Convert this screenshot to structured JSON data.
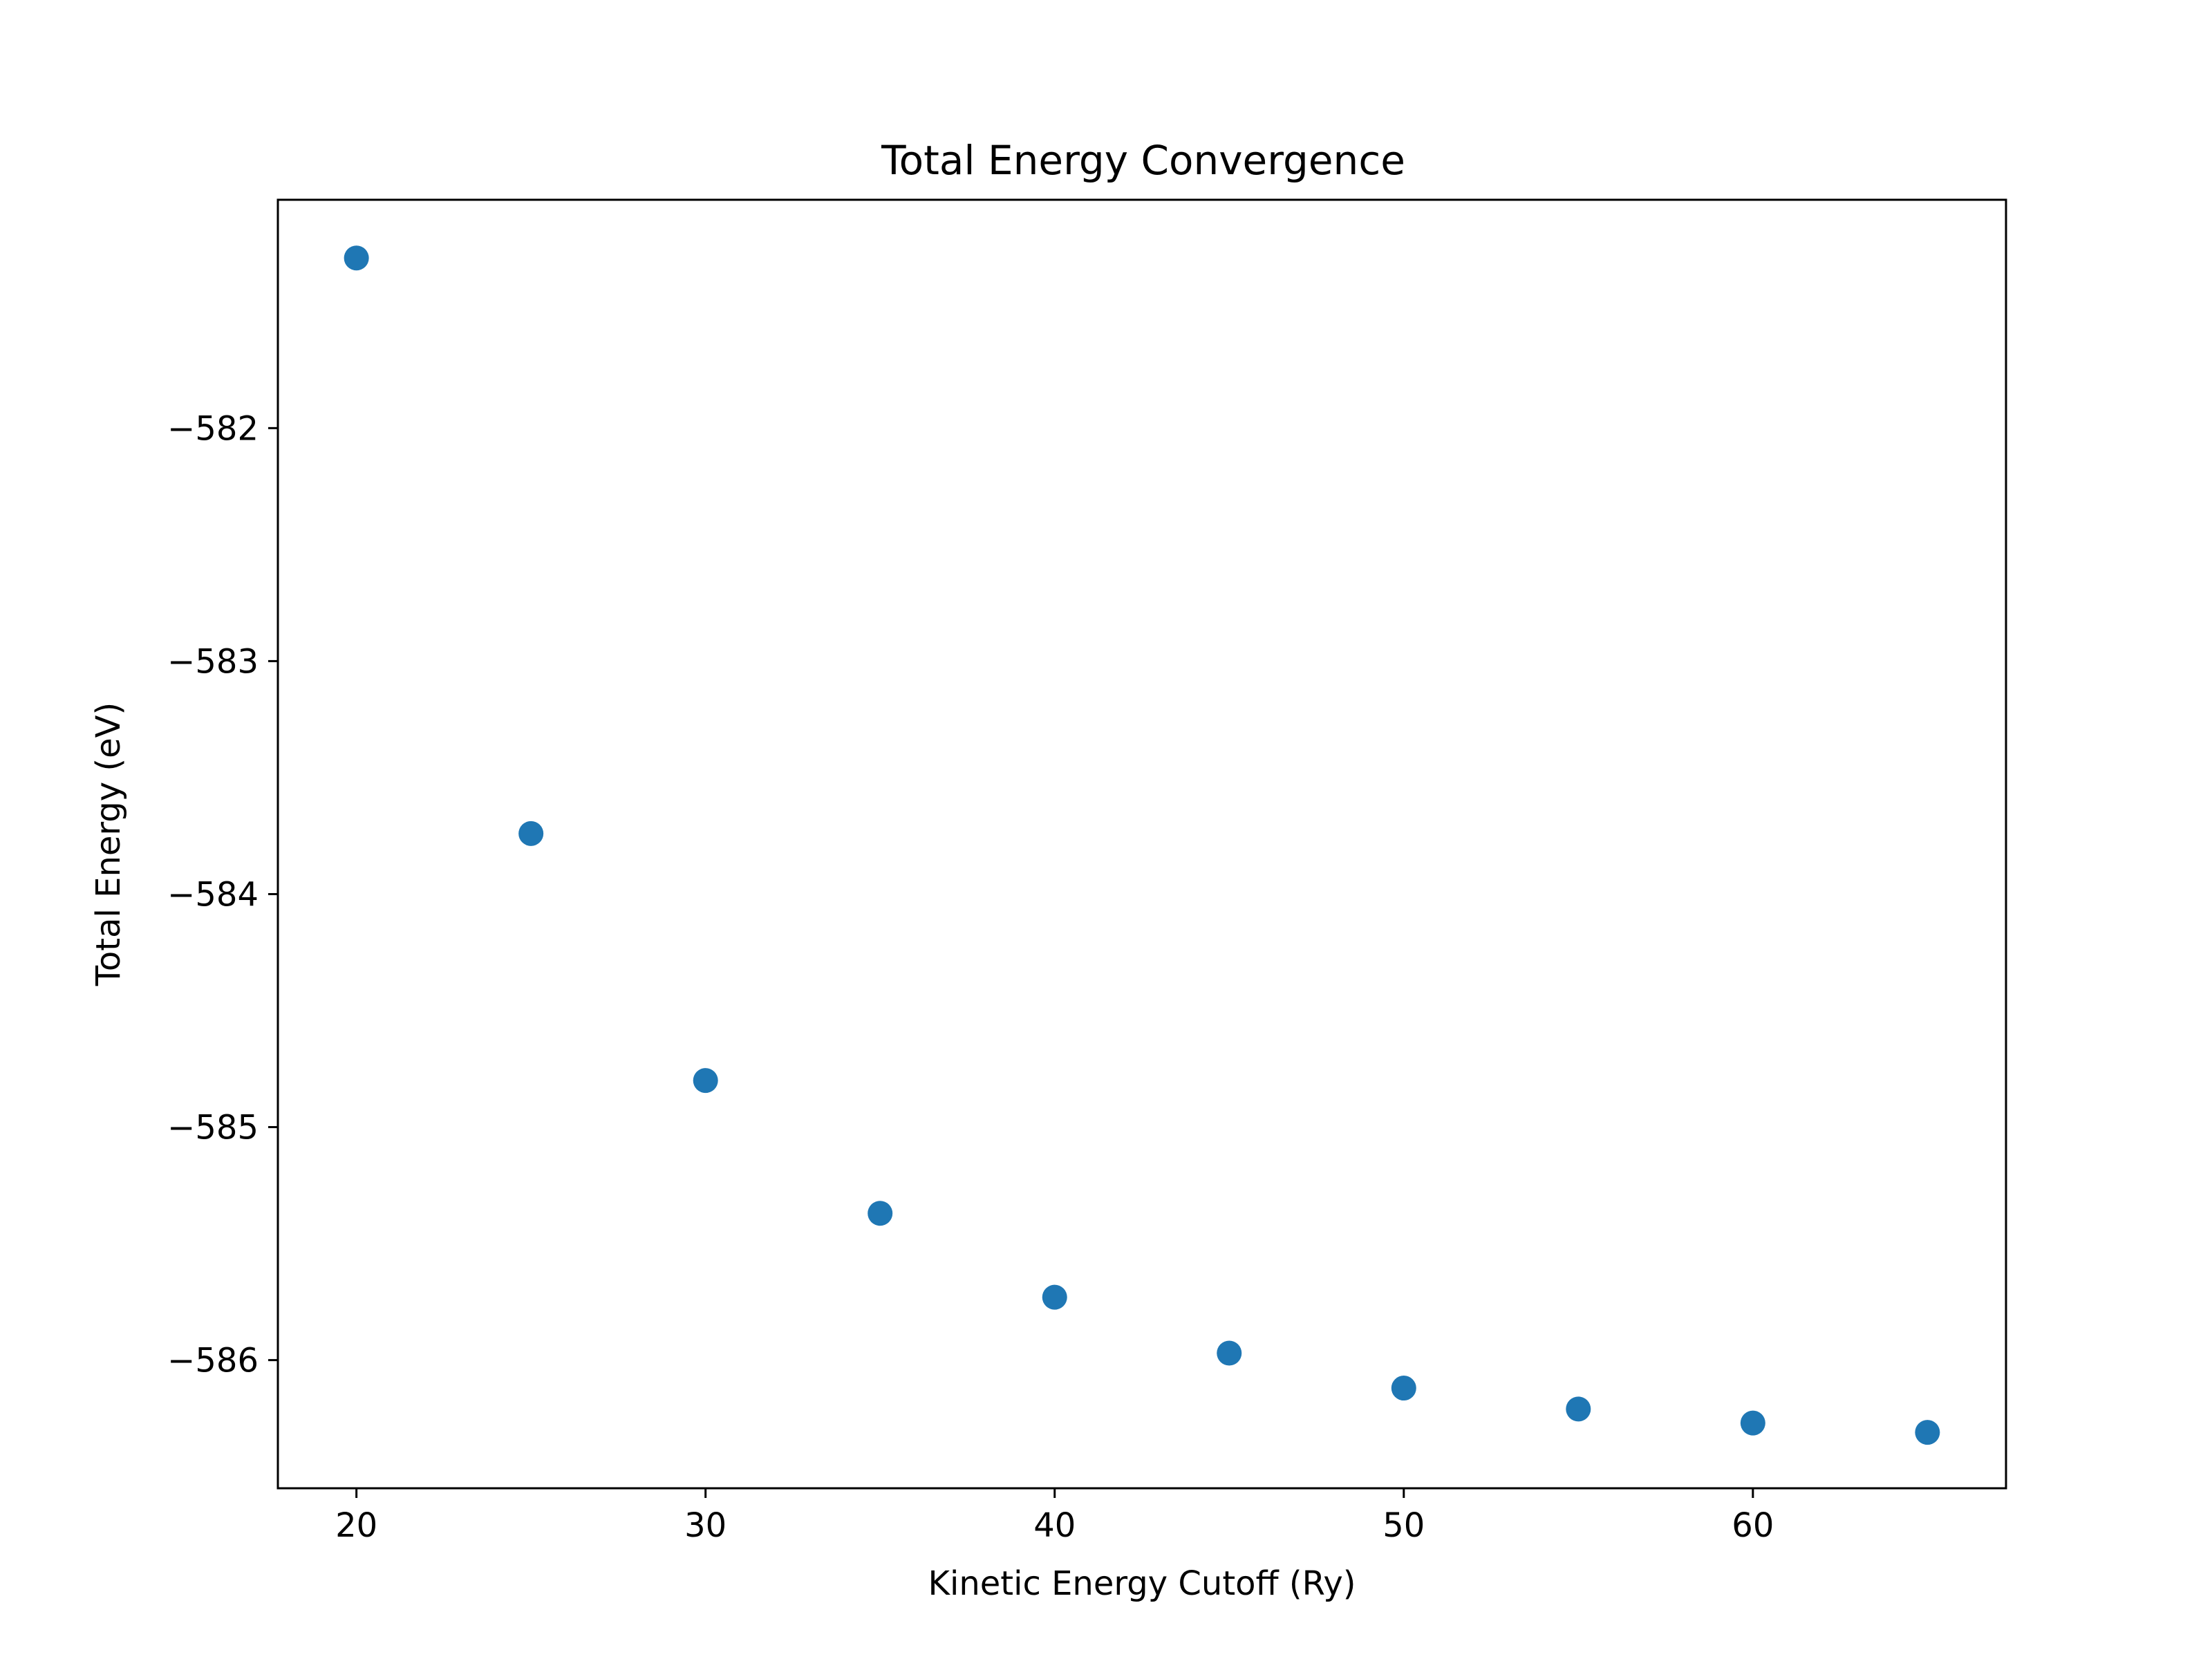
{
  "chart_data": {
    "type": "scatter",
    "title": "Total Energy Convergence",
    "xlabel": "Kinetic Energy Cutoff (Ry)",
    "ylabel": "Total Energy (eV)",
    "xlim": [
      17.75,
      67.25
    ],
    "ylim": [
      -586.55,
      -581.02
    ],
    "xticks": [
      20,
      30,
      40,
      50,
      60
    ],
    "yticks": [
      -582,
      -583,
      -584,
      -585,
      -586
    ],
    "ytick_labels": [
      "−582",
      "−583",
      "−584",
      "−585",
      "−586"
    ],
    "grid": false,
    "marker_color": "#1f77b4",
    "series": [
      {
        "x": [
          20,
          25,
          30,
          35,
          40,
          45,
          50,
          55,
          60,
          65
        ],
        "y": [
          -581.27,
          -583.74,
          -584.8,
          -585.37,
          -585.73,
          -585.97,
          -586.12,
          -586.21,
          -586.27,
          -586.31
        ]
      }
    ]
  }
}
